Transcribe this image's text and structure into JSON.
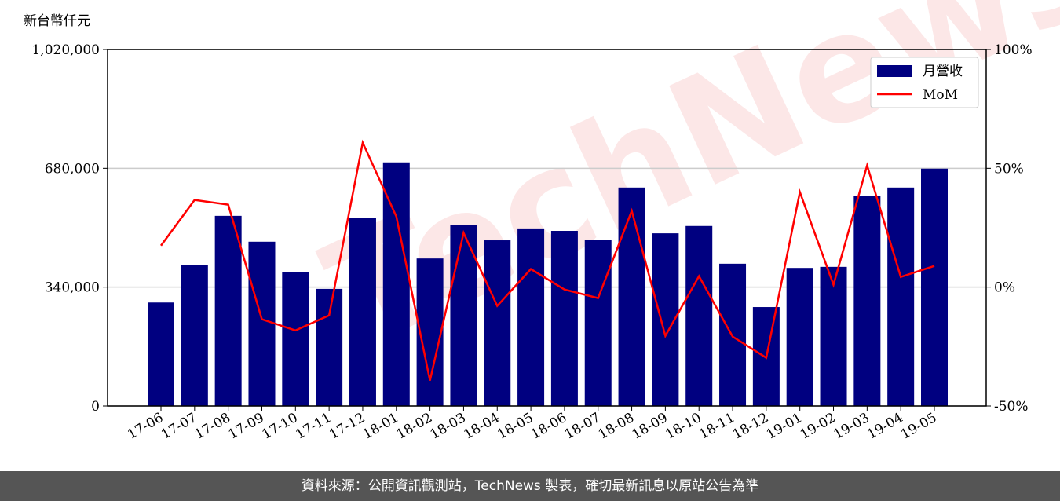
{
  "chart_data": {
    "type": "bar",
    "y_label": "新台幣仟元",
    "watermark": "TechNews",
    "footer": "資料來源：公開資訊觀測站，TechNews 製表，確切最新訊息以原站公告為準",
    "categories": [
      "17-06",
      "17-07",
      "17-08",
      "17-09",
      "17-10",
      "17-11",
      "17-12",
      "18-01",
      "18-02",
      "18-03",
      "18-04",
      "18-05",
      "18-06",
      "18-07",
      "18-08",
      "18-09",
      "18-10",
      "18-11",
      "18-12",
      "19-01",
      "19-02",
      "19-03",
      "19-04",
      "19-05"
    ],
    "series": [
      {
        "name": "月營收",
        "type": "bar",
        "color": "#000080",
        "axis": "y",
        "values": [
          296000,
          404000,
          544000,
          470000,
          382000,
          335000,
          539000,
          697000,
          422000,
          517000,
          474000,
          508000,
          501000,
          476000,
          625000,
          494000,
          515000,
          407000,
          283000,
          395000,
          398000,
          600000,
          625000,
          679000
        ]
      },
      {
        "name": "MoM",
        "type": "line",
        "color": "#ff0000",
        "axis": "y2",
        "values": [
          17.5,
          36.7,
          34.7,
          -13.5,
          -18.2,
          -11.9,
          60.8,
          29.7,
          -39.3,
          22.8,
          -7.9,
          7.6,
          -1.0,
          -4.6,
          32.1,
          -20.5,
          4.6,
          -20.8,
          -29.7,
          40.0,
          1.0,
          51.2,
          4.3,
          8.9
        ]
      }
    ],
    "ylim": [
      0,
      1020000
    ],
    "yticks": [
      0,
      {
        "value": 340000,
        "label": "340,000"
      },
      {
        "value": 680000,
        "label": "680,000"
      },
      {
        "value": 1020000,
        "label": "1,020,000"
      }
    ],
    "y2lim": [
      -50,
      100
    ],
    "y2ticks": [
      {
        "value": -50,
        "label": "-50%"
      },
      {
        "value": 0,
        "label": "0%"
      },
      {
        "value": 50,
        "label": "50%"
      },
      {
        "value": 100,
        "label": "100%"
      }
    ],
    "grid": true,
    "legend": "upper right"
  }
}
